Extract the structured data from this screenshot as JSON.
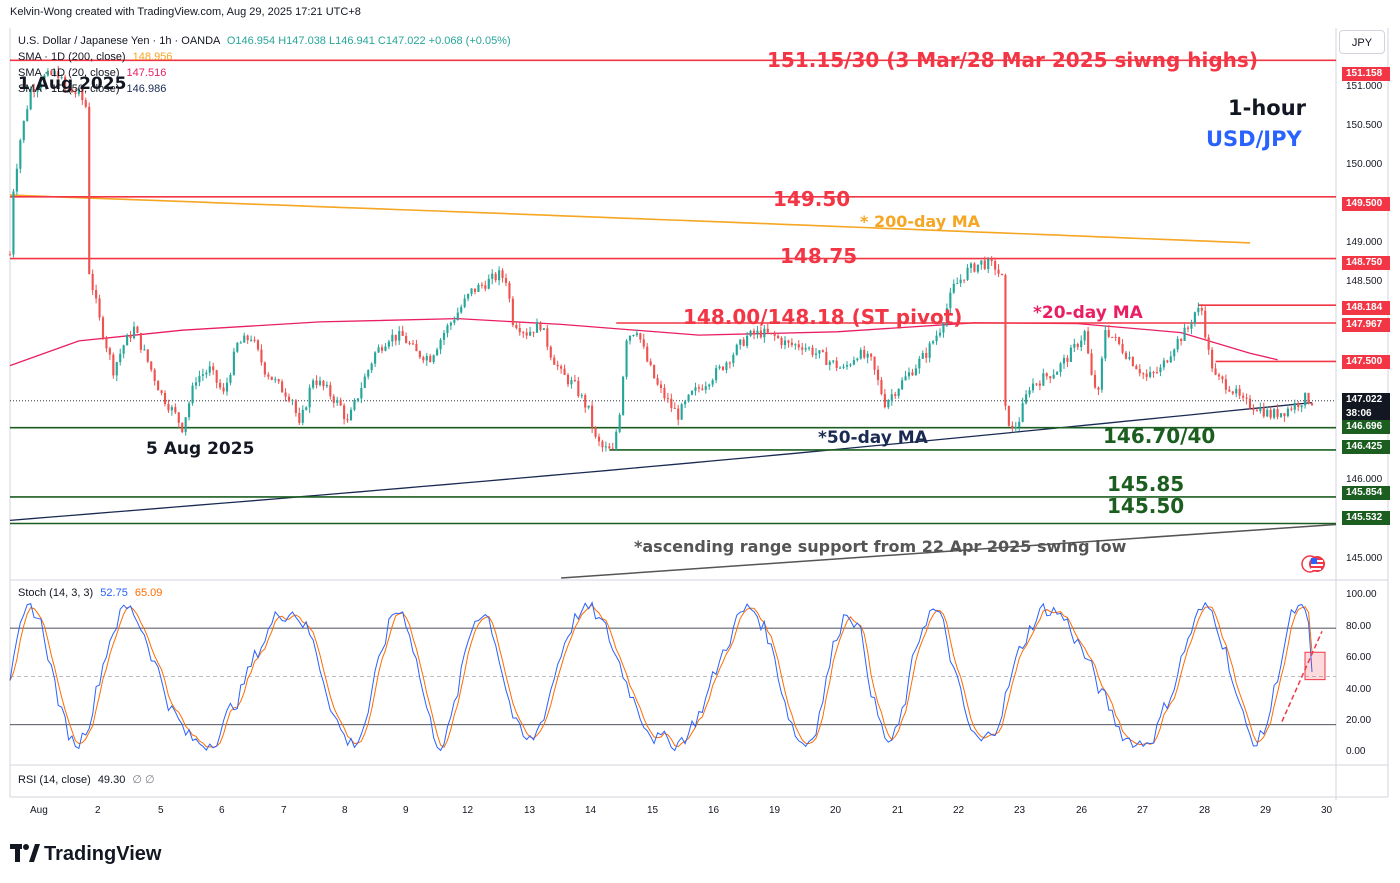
{
  "header": {
    "credit": "Kelvin-Wong created with TradingView.com, Aug 29, 2025 17:21 UTC+8"
  },
  "legend": {
    "symbol": "U.S. Dollar / Japanese Yen · 1h · OANDA",
    "ohlc": "O146.954 H147.038 L146.941 C147.022 +0.068 (+0.05%)",
    "sma200_label": "SMA · 1D (200, close)",
    "sma200_value": "148.956",
    "sma20_label": "SMA · 1D (20, close)",
    "sma20_value": "147.516",
    "sma50_label": "SMA · 1D (50, close)",
    "sma50_value": "146.986",
    "stoch_label": "Stoch (14, 3, 3)",
    "stoch_k": "52.75",
    "stoch_d": "65.09",
    "rsi_label": "RSI (14, close)",
    "rsi_value": "49.30",
    "rsi_extra": "∅ ∅"
  },
  "currency_button": "JPY",
  "annotations": {
    "swing_highs": "151.15/30 (3 Mar/28 Mar 2025 siwng highs)",
    "timeframe": "1-hour",
    "pair": "USD/JPY",
    "level_14950": "149.50",
    "ma200": "* 200-day MA",
    "level_14875": "148.75",
    "pivot": "148.00/148.18 (ST pivot)",
    "ma20": "*20-day MA",
    "date_aug1": "1 Aug 2025",
    "date_aug5": "5 Aug 2025",
    "ma50": "*50-day MA",
    "level_14670": "146.70/40",
    "level_14585": "145.85",
    "level_14550": "145.50",
    "ascending": "*ascending range support from 22 Apr 2025 swing low"
  },
  "price_tags": [
    {
      "value": "151.158",
      "color": "#f23645"
    },
    {
      "value": "149.500",
      "color": "#f23645"
    },
    {
      "value": "148.750",
      "color": "#f23645"
    },
    {
      "value": "148.184",
      "color": "#f23645"
    },
    {
      "value": "147.967",
      "color": "#f23645"
    },
    {
      "value": "147.500",
      "color": "#f23645"
    },
    {
      "value": "147.022",
      "color": "#131722"
    },
    {
      "value": "146.696",
      "color": "#1b5e20"
    },
    {
      "value": "146.425",
      "color": "#1b5e20"
    },
    {
      "value": "145.854",
      "color": "#1b5e20"
    },
    {
      "value": "145.532",
      "color": "#1b5e20"
    }
  ],
  "countdown": "38:06",
  "brand": "TradingView",
  "colors": {
    "up": "#26a69a",
    "down": "#ef5350",
    "resistance": "#f23645",
    "support": "#1b5e20",
    "ma200": "#f5a623",
    "ma20": "#e91e63",
    "ma50": "#1a2a52",
    "stoch_k": "#2962ff",
    "stoch_d": "#ff6d00",
    "pair_text": "#2962ff"
  },
  "chart_data": [
    {
      "type": "candlestick",
      "title": "U.S. Dollar / Japanese Yen · 1h · OANDA",
      "y_axis_ticks": [
        151.0,
        150.5,
        150.0,
        149.0,
        148.5,
        146.0,
        145.0
      ],
      "y_axis_ticks_labels": [
        "151.000",
        "150.500",
        "150.000",
        "149.000",
        "148.500",
        "146.000",
        "145.000"
      ],
      "ylim": [
        144.87,
        151.55
      ],
      "x_axis_labels": [
        "Aug",
        "2",
        "5",
        "6",
        "7",
        "8",
        "9",
        "12",
        "13",
        "14",
        "15",
        "16",
        "19",
        "20",
        "21",
        "22",
        "23",
        "26",
        "27",
        "28",
        "29",
        "30"
      ],
      "horizontal_levels": [
        {
          "value": 151.158,
          "color": "resistance"
        },
        {
          "value": 149.5,
          "color": "resistance"
        },
        {
          "value": 148.75,
          "color": "resistance"
        },
        {
          "value": 148.184,
          "color": "resistance"
        },
        {
          "value": 147.967,
          "color": "resistance"
        },
        {
          "value": 147.5,
          "color": "resistance"
        },
        {
          "value": 146.696,
          "color": "support"
        },
        {
          "value": 146.425,
          "color": "support"
        },
        {
          "value": 145.854,
          "color": "support"
        },
        {
          "value": 145.532,
          "color": "support"
        }
      ],
      "price_path": [
        [
          0,
          148.8
        ],
        [
          1,
          149.6
        ],
        [
          3,
          150.2
        ],
        [
          6,
          150.8
        ],
        [
          10,
          150.95
        ],
        [
          14,
          151.0
        ],
        [
          16,
          150.8
        ],
        [
          20,
          150.75
        ],
        [
          22,
          150.6
        ],
        [
          23,
          148.6
        ],
        [
          26,
          148.0
        ],
        [
          30,
          147.4
        ],
        [
          33,
          147.7
        ],
        [
          36,
          147.9
        ],
        [
          40,
          147.5
        ],
        [
          44,
          147.1
        ],
        [
          48,
          146.85
        ],
        [
          50,
          146.7
        ],
        [
          54,
          147.3
        ],
        [
          58,
          147.4
        ],
        [
          62,
          147.1
        ],
        [
          66,
          147.7
        ],
        [
          70,
          147.8
        ],
        [
          74,
          147.4
        ],
        [
          78,
          147.2
        ],
        [
          82,
          147.05
        ],
        [
          84,
          146.7
        ],
        [
          88,
          147.3
        ],
        [
          92,
          147.15
        ],
        [
          96,
          146.95
        ],
        [
          98,
          146.75
        ],
        [
          102,
          147.2
        ],
        [
          106,
          147.6
        ],
        [
          110,
          147.8
        ],
        [
          114,
          147.8
        ],
        [
          118,
          147.6
        ],
        [
          122,
          147.55
        ],
        [
          126,
          147.85
        ],
        [
          130,
          148.1
        ],
        [
          134,
          148.35
        ],
        [
          138,
          148.45
        ],
        [
          142,
          148.55
        ],
        [
          144,
          148.5
        ],
        [
          146,
          148.0
        ],
        [
          150,
          147.85
        ],
        [
          154,
          147.95
        ],
        [
          157,
          147.6
        ],
        [
          160,
          147.35
        ],
        [
          164,
          147.2
        ],
        [
          168,
          146.9
        ],
        [
          170,
          146.55
        ],
        [
          172,
          146.45
        ],
        [
          175,
          146.4
        ],
        [
          177,
          146.9
        ],
        [
          179,
          147.8
        ],
        [
          182,
          147.9
        ],
        [
          185,
          147.5
        ],
        [
          188,
          147.2
        ],
        [
          192,
          146.95
        ],
        [
          194,
          146.85
        ],
        [
          198,
          147.1
        ],
        [
          202,
          147.25
        ],
        [
          206,
          147.4
        ],
        [
          210,
          147.6
        ],
        [
          214,
          147.8
        ],
        [
          218,
          147.85
        ],
        [
          222,
          147.8
        ],
        [
          226,
          147.7
        ],
        [
          230,
          147.7
        ],
        [
          234,
          147.6
        ],
        [
          238,
          147.5
        ],
        [
          242,
          147.4
        ],
        [
          246,
          147.6
        ],
        [
          250,
          147.5
        ],
        [
          254,
          147.0
        ],
        [
          258,
          147.2
        ],
        [
          262,
          147.4
        ],
        [
          266,
          147.6
        ],
        [
          270,
          147.9
        ],
        [
          274,
          148.4
        ],
        [
          278,
          148.6
        ],
        [
          282,
          148.7
        ],
        [
          286,
          148.65
        ],
        [
          288,
          148.5
        ],
        [
          289,
          146.9
        ],
        [
          291,
          146.65
        ],
        [
          293,
          146.8
        ],
        [
          296,
          147.2
        ],
        [
          300,
          147.3
        ],
        [
          304,
          147.4
        ],
        [
          308,
          147.6
        ],
        [
          312,
          147.85
        ],
        [
          314,
          147.3
        ],
        [
          316,
          147.1
        ],
        [
          318,
          147.9
        ],
        [
          322,
          147.7
        ],
        [
          326,
          147.5
        ],
        [
          330,
          147.3
        ],
        [
          334,
          147.4
        ],
        [
          338,
          147.7
        ],
        [
          342,
          147.9
        ],
        [
          344,
          148.1
        ],
        [
          346,
          148.12
        ],
        [
          348,
          147.6
        ],
        [
          350,
          147.3
        ],
        [
          354,
          147.2
        ],
        [
          358,
          147.0
        ],
        [
          362,
          146.95
        ],
        [
          366,
          146.85
        ],
        [
          370,
          146.9
        ],
        [
          374,
          147.0
        ],
        [
          376,
          147.05
        ],
        [
          378,
          147.02
        ]
      ]
    },
    {
      "type": "line",
      "title": "Stoch (14, 3, 3)",
      "y_axis_ticks": [
        0,
        20,
        40,
        60,
        80,
        100
      ],
      "y_axis_ticks_labels": [
        "0.00",
        "20.00",
        "40.00",
        "60.00",
        "80.00",
        "100.00"
      ],
      "ylim": [
        -5,
        108
      ],
      "series": [
        {
          "name": "%K",
          "last": 52.75
        },
        {
          "name": "%D",
          "last": 65.09
        }
      ]
    }
  ]
}
